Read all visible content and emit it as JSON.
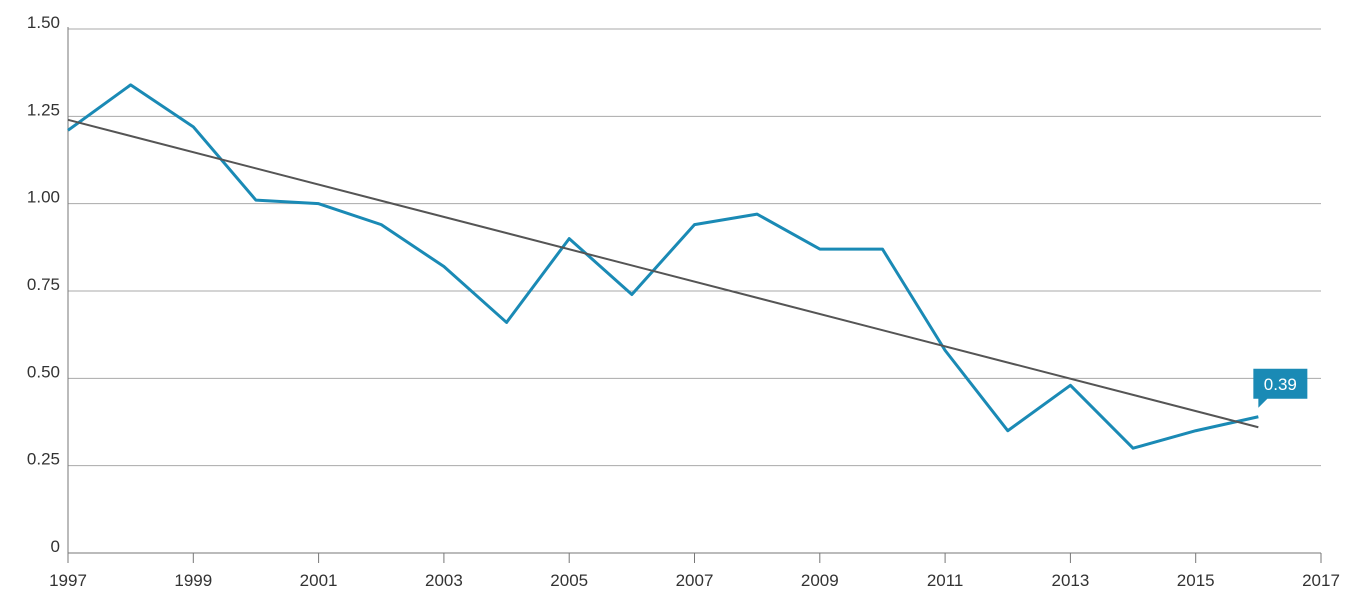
{
  "chart_data": {
    "type": "line",
    "x": [
      1997,
      1998,
      1999,
      2000,
      2001,
      2002,
      2003,
      2004,
      2005,
      2006,
      2007,
      2008,
      2009,
      2010,
      2011,
      2012,
      2013,
      2014,
      2015,
      2016
    ],
    "series": [
      {
        "color": "#1a8ab5",
        "values": [
          1.21,
          1.34,
          1.22,
          1.01,
          1.0,
          0.94,
          0.82,
          0.66,
          0.9,
          0.74,
          0.94,
          0.97,
          0.87,
          0.87,
          0.58,
          0.35,
          0.48,
          0.3,
          0.35,
          0.39
        ]
      }
    ],
    "trend_line": {
      "color": "#555555",
      "x": [
        1997,
        2016
      ],
      "values": [
        1.24,
        0.36
      ]
    },
    "xlim": [
      1997,
      2017
    ],
    "xticks": [
      1997,
      1999,
      2001,
      2003,
      2005,
      2007,
      2009,
      2011,
      2013,
      2015,
      2017
    ],
    "ylim": [
      0,
      1.5
    ],
    "yticks": [
      0,
      0.25,
      {
        "value": 0.5,
        "label": "0.50"
      },
      0.75,
      {
        "value": 1,
        "label": "1.00"
      },
      1.25,
      {
        "value": 1.5,
        "label": "1.50"
      }
    ],
    "grid": true
  }
}
